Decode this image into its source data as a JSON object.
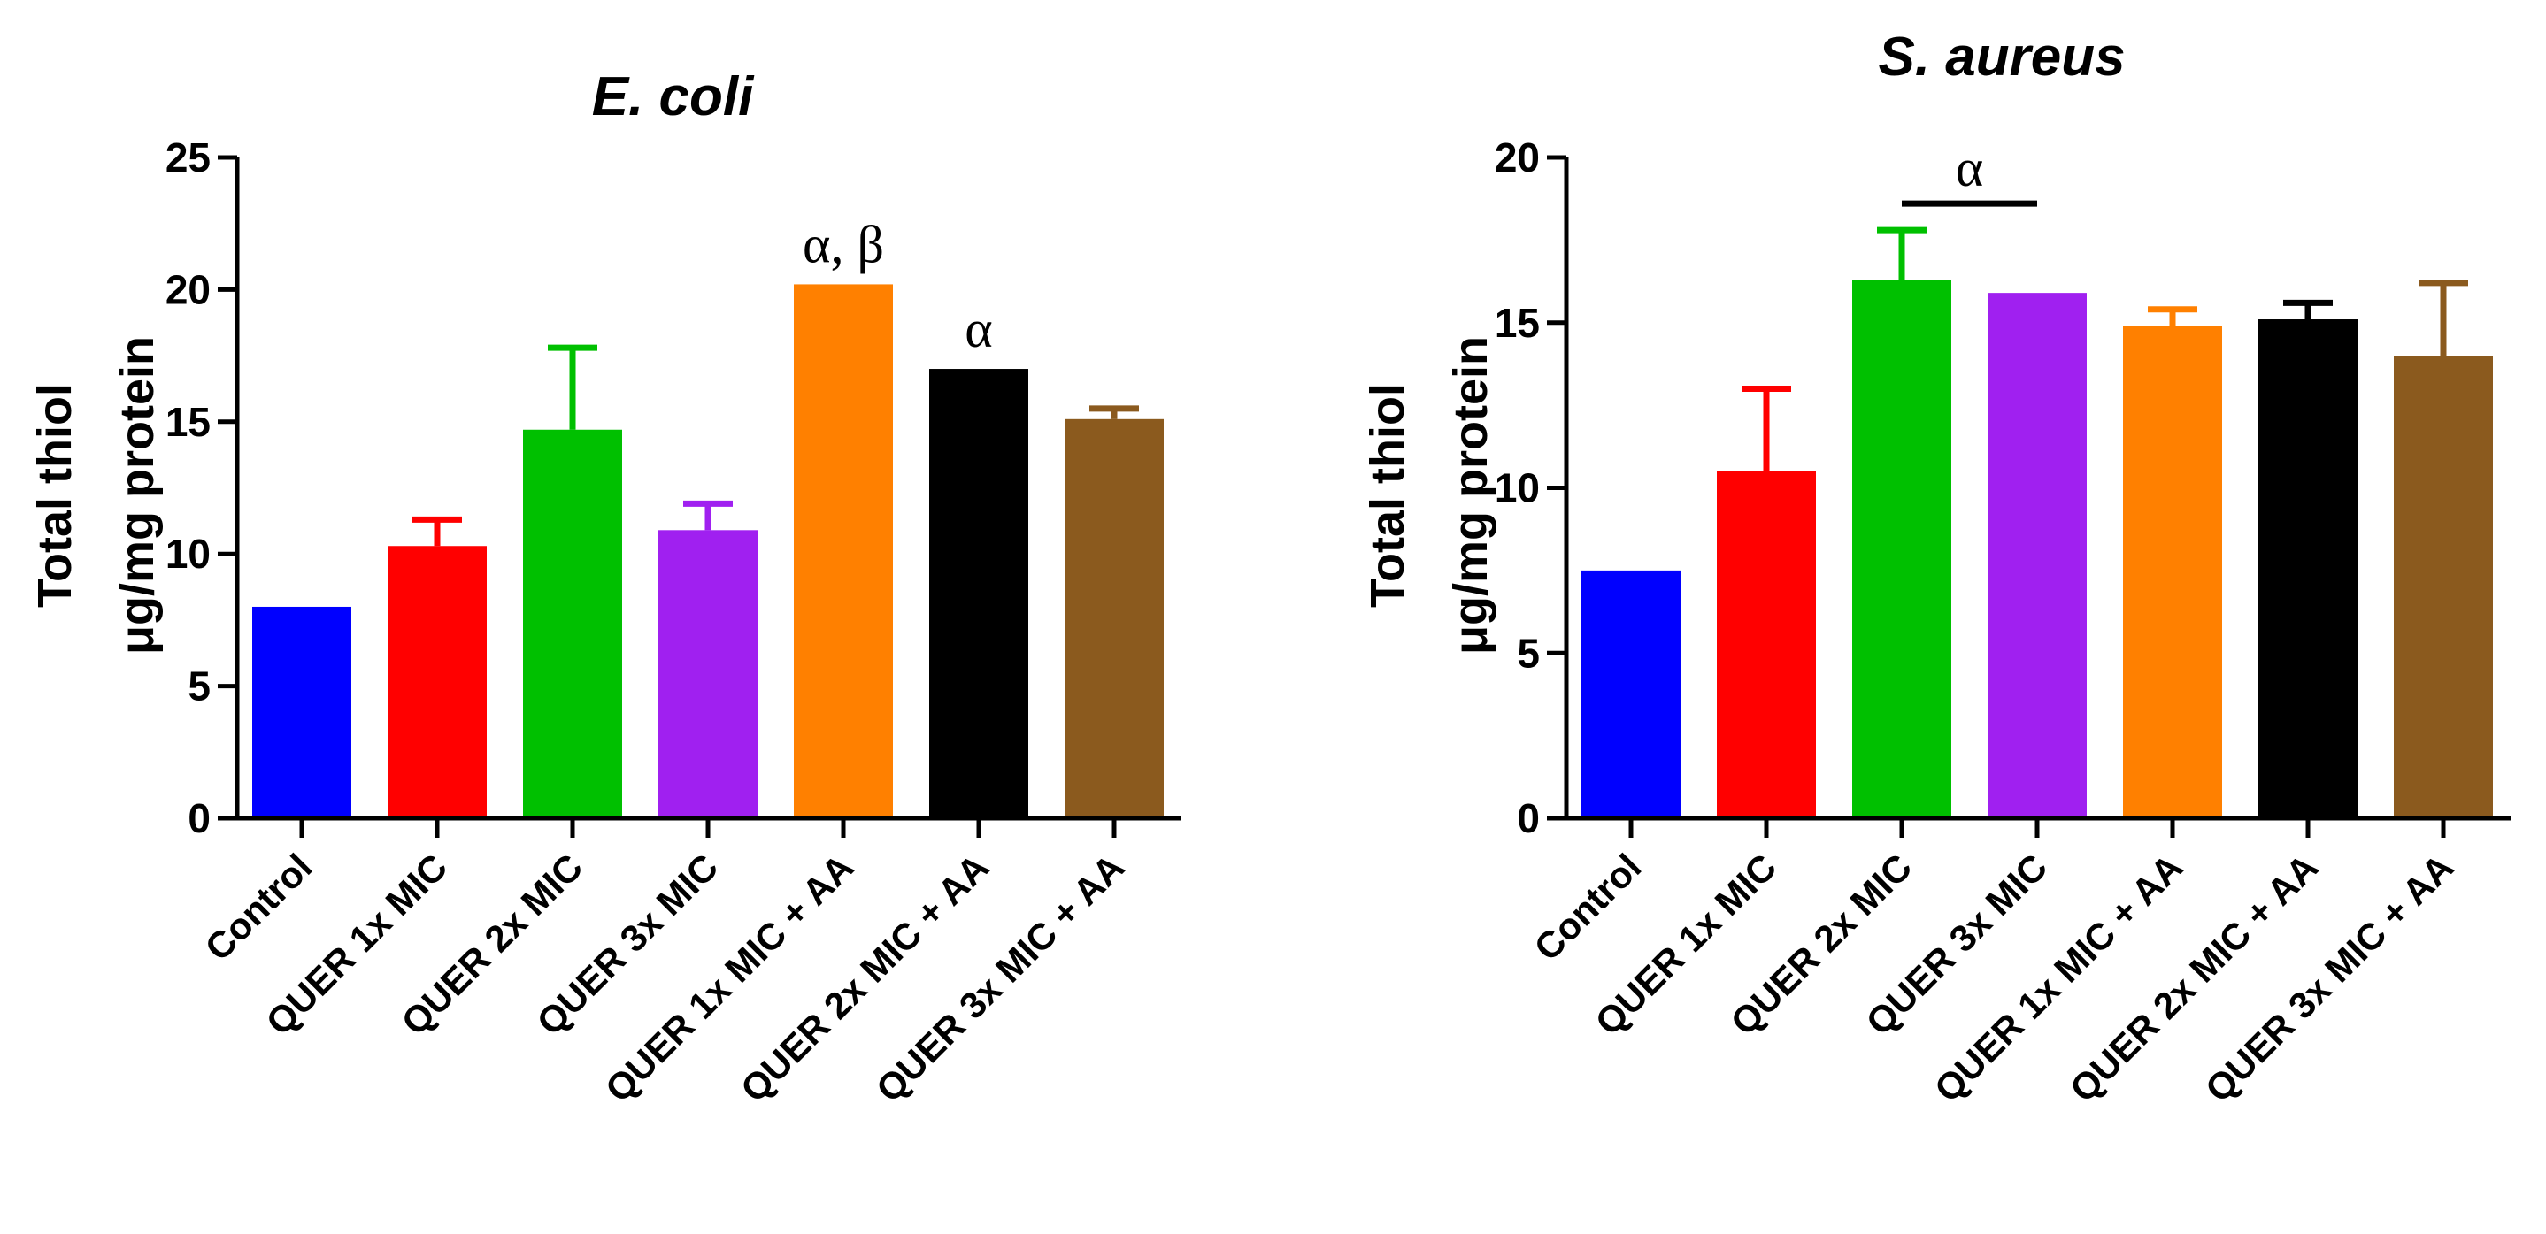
{
  "chart_data": [
    {
      "type": "bar",
      "title": "E. coli",
      "ylabel": [
        "Total thiol",
        "μg/mg protein"
      ],
      "xlabel": "",
      "ylim": [
        0,
        25
      ],
      "yticks": [
        0,
        5,
        10,
        15,
        20,
        25
      ],
      "categories": [
        "Control",
        "QUER 1x MIC",
        "QUER 2x MIC",
        "QUER 3x MIC",
        "QUER 1x MIC + AA",
        "QUER 2x MIC + AA",
        "QUER 3x MIC + AA"
      ],
      "values": [
        8.0,
        10.3,
        14.7,
        10.9,
        20.2,
        17.0,
        15.1
      ],
      "errors": [
        0,
        1.0,
        3.1,
        1.0,
        0,
        0,
        0.4
      ],
      "colors": [
        "#0000ff",
        "#ff0000",
        "#00c000",
        "#a020f0",
        "#ff8000",
        "#000000",
        "#8b5a1e"
      ],
      "annotations": [
        {
          "text": "α, β",
          "bar": 4
        },
        {
          "text": "α",
          "bar": 5
        }
      ]
    },
    {
      "type": "bar",
      "title": "S. aureus",
      "ylabel": [
        "Total thiol",
        "μg/mg protein"
      ],
      "xlabel": "",
      "ylim": [
        0,
        20
      ],
      "yticks": [
        0,
        5,
        10,
        15,
        20
      ],
      "categories": [
        "Control",
        "QUER 1x MIC",
        "QUER 2x MIC",
        "QUER 3x MIC",
        "QUER 1x MIC + AA",
        "QUER 2x MIC + AA",
        "QUER 3x MIC + AA"
      ],
      "values": [
        7.5,
        10.5,
        16.3,
        15.9,
        14.9,
        15.1,
        14.0
      ],
      "errors": [
        0,
        2.5,
        1.5,
        0,
        0.5,
        0.5,
        2.2
      ],
      "colors": [
        "#0000ff",
        "#ff0000",
        "#00c000",
        "#a020f0",
        "#ff8000",
        "#000000",
        "#8b5a1e"
      ],
      "annotations": [
        {
          "text": "α",
          "bracket": [
            2,
            3
          ]
        }
      ]
    }
  ]
}
